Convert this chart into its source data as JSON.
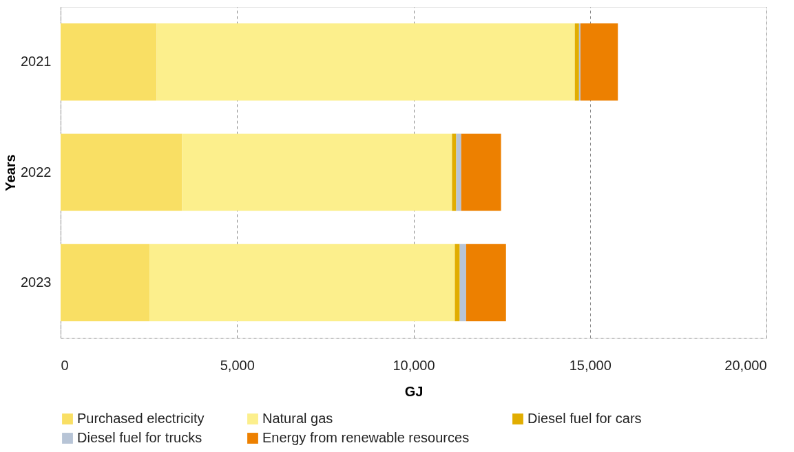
{
  "chart_data": {
    "type": "bar",
    "orientation": "horizontal",
    "stacked": true,
    "xlabel": "GJ",
    "ylabel": "Years",
    "categories": [
      "2021",
      "2022",
      "2023"
    ],
    "series": [
      {
        "name": "Purchased electricity",
        "color": "#f9df64",
        "values": [
          2720,
          3440,
          2520
        ]
      },
      {
        "name": "Natural gas",
        "color": "#fcef8c",
        "values": [
          11850,
          7650,
          8650
        ]
      },
      {
        "name": "Diesel fuel for cars",
        "color": "#e1ad01",
        "values": [
          120,
          120,
          140
        ]
      },
      {
        "name": "Diesel fuel for trucks",
        "color": "#b7c4d6",
        "values": [
          40,
          140,
          180
        ]
      },
      {
        "name": "Energy from renewable resources",
        "color": "#ed8000",
        "values": [
          1060,
          1130,
          1130
        ]
      }
    ],
    "xlim": [
      0,
      20000
    ],
    "xticks": [
      0,
      {
        "value": 5000,
        "label": "5,000"
      },
      {
        "value": 10000,
        "label": "10,000"
      },
      {
        "value": 15000,
        "label": "15,000"
      },
      {
        "value": 20000,
        "label": "20,000"
      }
    ],
    "grid": "x",
    "legend": "bottom"
  }
}
